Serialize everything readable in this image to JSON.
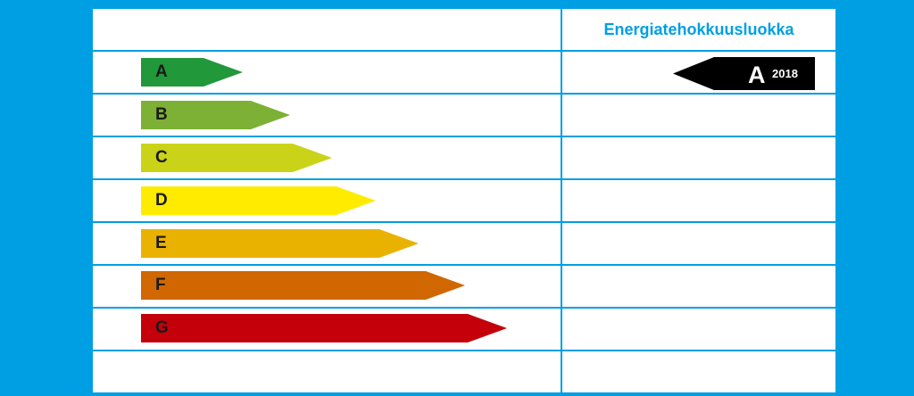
{
  "header": {
    "title": "Energiatehokkuusluokka"
  },
  "classes": [
    {
      "label": "A",
      "color": "#21983a"
    },
    {
      "label": "B",
      "color": "#7cb135"
    },
    {
      "label": "C",
      "color": "#cbd319"
    },
    {
      "label": "D",
      "color": "#ffeb00"
    },
    {
      "label": "E",
      "color": "#eab200"
    },
    {
      "label": "F",
      "color": "#d06700"
    },
    {
      "label": "G",
      "color": "#c4000a"
    }
  ],
  "rating": {
    "class": "A",
    "year": "2018",
    "color": "#000000"
  },
  "colors": {
    "background": "#009fe3",
    "table": "#ffffff",
    "grid": "#009fe3"
  }
}
